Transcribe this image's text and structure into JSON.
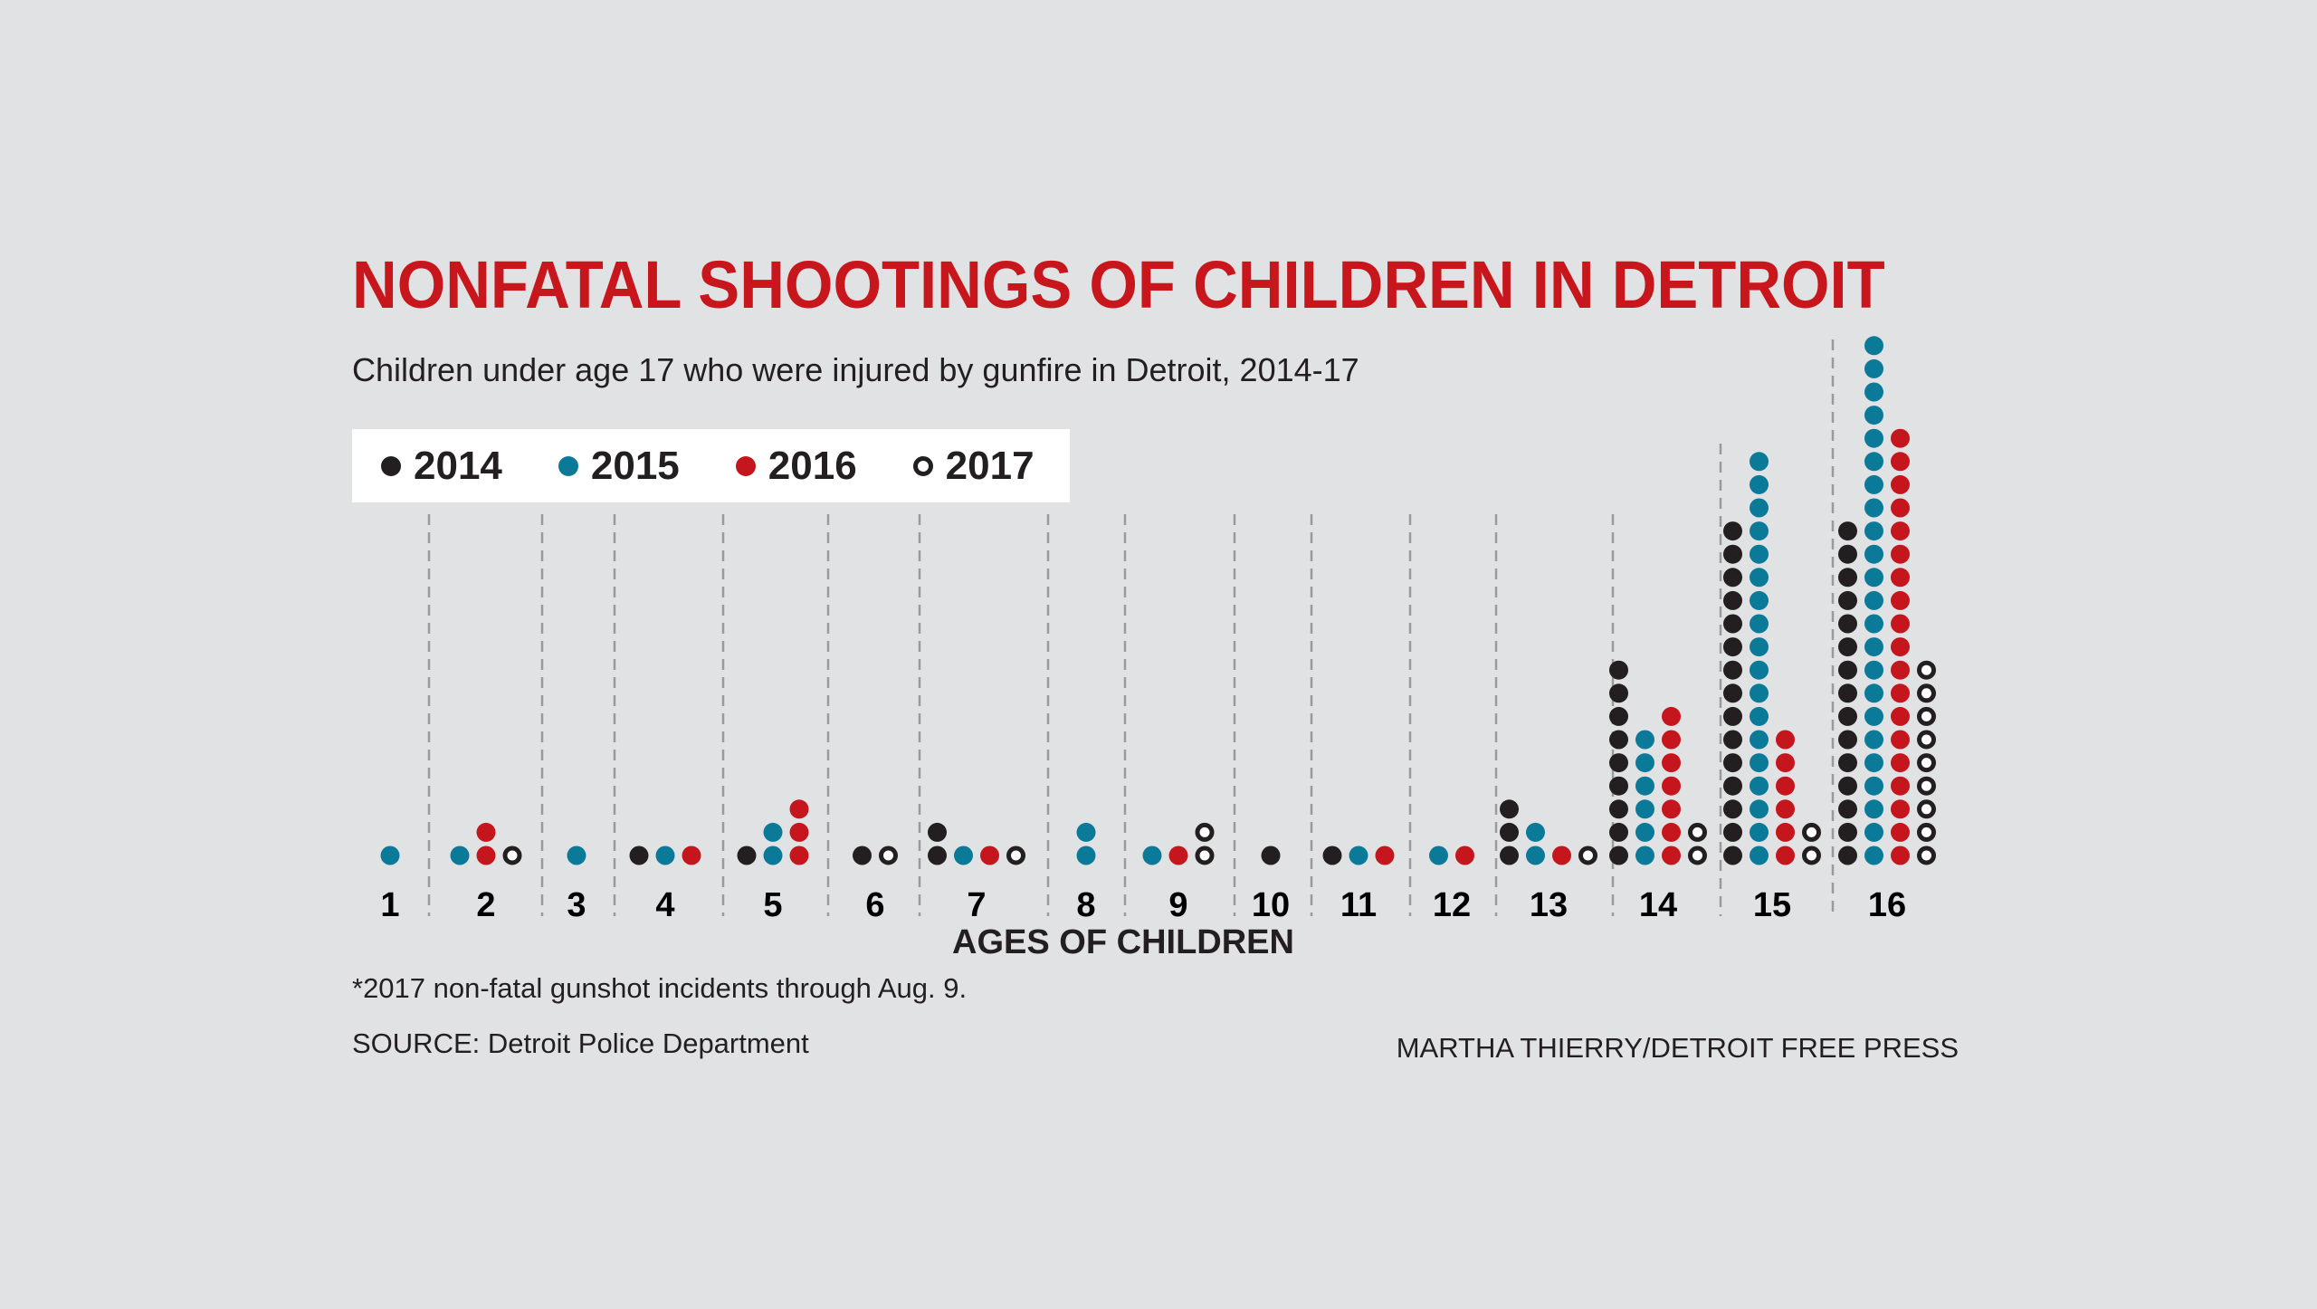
{
  "title": "NONFATAL SHOOTINGS OF CHILDREN IN DETROIT",
  "subtitle": "Children under age 17 who were injured by gunfire in Detroit, 2014-17",
  "footnote": "*2017 non-fatal gunshot incidents through Aug. 9.",
  "source": "SOURCE: Detroit Police Department",
  "credit": "MARTHA THIERRY/DETROIT FREE PRESS",
  "chart_data": {
    "type": "dot-plot",
    "title": "NONFATAL SHOOTINGS OF CHILDREN IN DETROIT",
    "xlabel": "AGES OF CHILDREN",
    "ylabel": "",
    "categories": [
      "1",
      "2",
      "3",
      "4",
      "5",
      "6",
      "7",
      "8",
      "9",
      "10",
      "11",
      "12",
      "13",
      "14",
      "15",
      "16"
    ],
    "legend_position": "top-left",
    "series": [
      {
        "name": "2014",
        "color": "#231f20",
        "hollow": false,
        "values": [
          0,
          0,
          0,
          1,
          1,
          1,
          2,
          0,
          0,
          1,
          1,
          0,
          3,
          9,
          15,
          15
        ]
      },
      {
        "name": "2015",
        "color": "#0b7a99",
        "hollow": false,
        "values": [
          1,
          1,
          1,
          1,
          2,
          0,
          1,
          2,
          1,
          0,
          1,
          1,
          2,
          6,
          18,
          23
        ]
      },
      {
        "name": "2016",
        "color": "#c4161c",
        "hollow": false,
        "values": [
          0,
          2,
          0,
          1,
          3,
          0,
          1,
          0,
          1,
          0,
          1,
          1,
          1,
          7,
          6,
          19
        ]
      },
      {
        "name": "2017",
        "color": "#231f20",
        "hollow": true,
        "values": [
          0,
          1,
          0,
          0,
          0,
          1,
          1,
          0,
          2,
          0,
          0,
          0,
          1,
          2,
          2,
          9
        ]
      }
    ]
  }
}
